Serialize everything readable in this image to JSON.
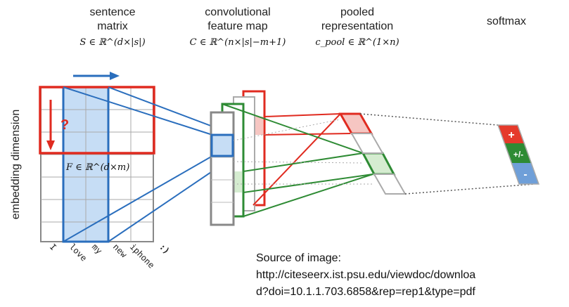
{
  "headers": [
    {
      "line1": "sentence",
      "line2": "matrix",
      "math": "S ∈ ℝ^(d×|s|)"
    },
    {
      "line1": "convolutional",
      "line2": "feature map",
      "math": "C ∈ ℝ^(n×|s|−m+1)"
    },
    {
      "line1": "pooled",
      "line2": "representation",
      "math": "c_pool ∈ ℝ^(1×n)"
    },
    {
      "line1": "softmax",
      "line2": "",
      "math": ""
    }
  ],
  "y_axis_label": "embedding dimension",
  "filter_label": "F ∈ ℝ^(d×m)",
  "question_mark": "?",
  "words": [
    "I",
    "love",
    "my",
    "new",
    "iphone",
    ":)"
  ],
  "softmax_outputs": [
    {
      "label": "+",
      "color": "#e53a2b"
    },
    {
      "label": "+/-",
      "color": "#2e8b34"
    },
    {
      "label": "-",
      "color": "#6f9fd8"
    }
  ],
  "source": {
    "line1": "Source of image:",
    "line2": "http://citeseerx.ist.psu.edu/viewdoc/downloa",
    "line3": "d?doi=10.1.1.703.6858&rep=rep1&type=pdf"
  },
  "colors": {
    "red": "#e02b20",
    "blue": "#2a6ebd",
    "green": "#2e8b34",
    "gray": "#888888",
    "light_blue": "#c6ddf5"
  }
}
